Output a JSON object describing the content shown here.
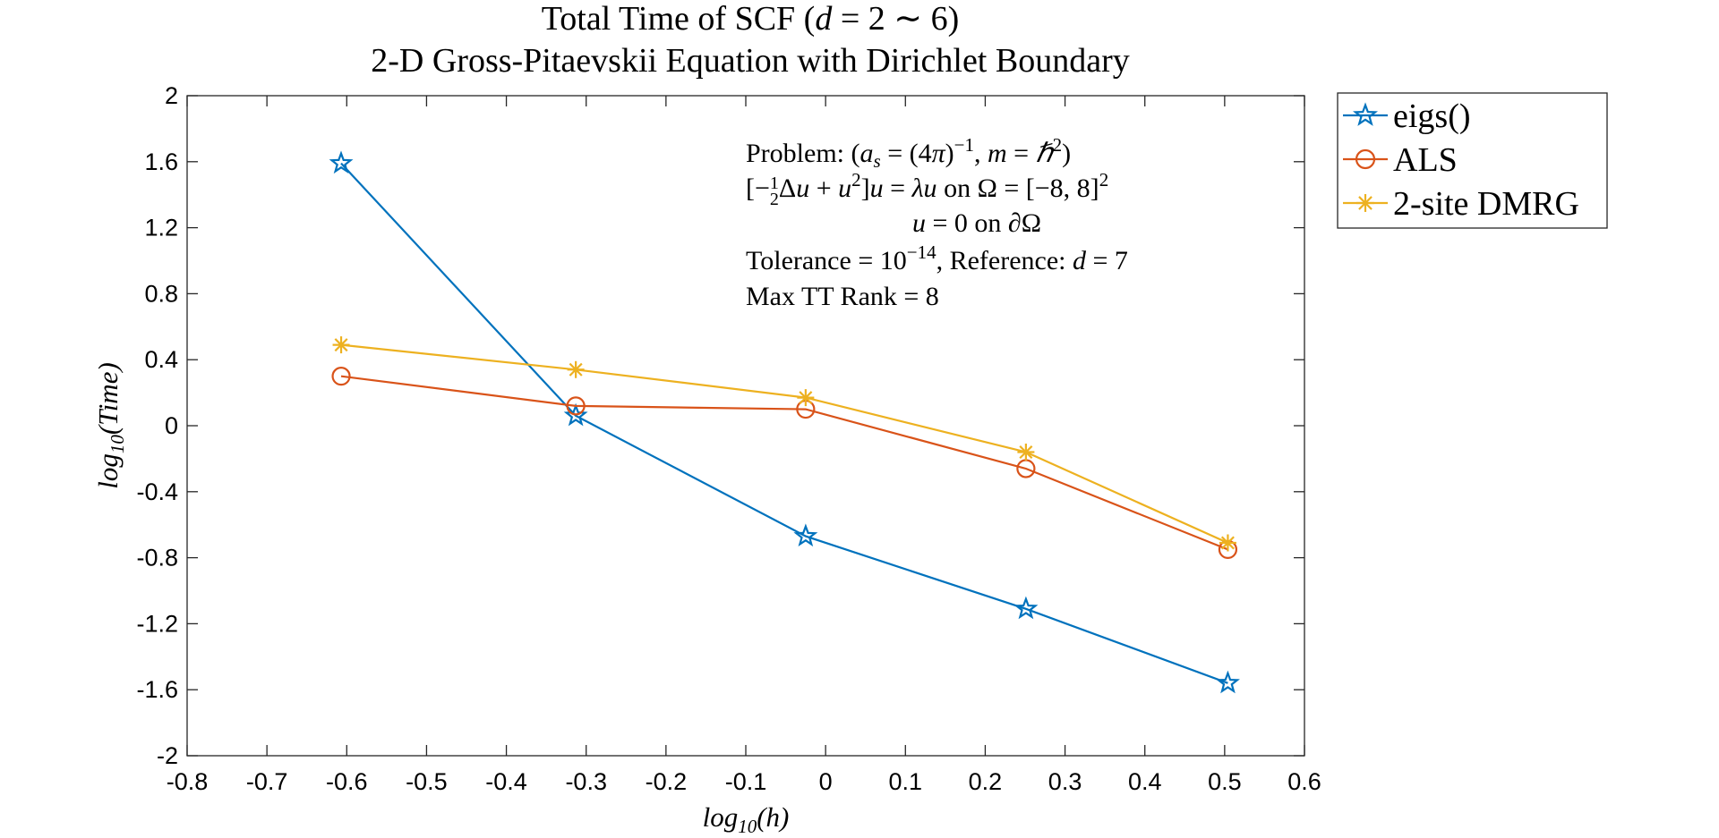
{
  "chart_data": {
    "type": "line",
    "title": "Total Time of SCF (d = 2 ∼ 6)",
    "subtitle": "2-D Gross-Pitaevskii Equation with Dirichlet Boundary",
    "xlabel": "log10(h)",
    "ylabel": "log10(Time)",
    "xlim": [
      -0.8,
      0.6
    ],
    "ylim": [
      -2,
      2
    ],
    "xticks": [
      "-0.8",
      "-0.7",
      "-0.6",
      "-0.5",
      "-0.4",
      "-0.3",
      "-0.2",
      "-0.1",
      "0",
      "0.1",
      "0.2",
      "0.3",
      "0.4",
      "0.5",
      "0.6"
    ],
    "yticks": [
      "2",
      "1.6",
      "1.2",
      "0.8",
      "0.4",
      "0",
      "-0.4",
      "-0.8",
      "-1.2",
      "-1.6",
      "-2"
    ],
    "x": [
      -0.607,
      -0.313,
      -0.025,
      0.251,
      0.504
    ],
    "series": [
      {
        "name": "eigs()",
        "marker": "star",
        "color": "#0072BD",
        "values": [
          1.59,
          0.06,
          -0.67,
          -1.11,
          -1.56
        ]
      },
      {
        "name": "ALS",
        "marker": "circle",
        "color": "#D95319",
        "values": [
          0.3,
          0.12,
          0.1,
          -0.26,
          -0.75
        ]
      },
      {
        "name": "2-site DMRG",
        "marker": "asterisk",
        "color": "#EDB120",
        "values": [
          0.49,
          0.34,
          0.17,
          -0.16,
          -0.71
        ]
      }
    ],
    "annotations": [
      "Problem: (as = (4π)−1, m = ℏ2)",
      "[−½Δu + u2]u = λu on Ω = [−8, 8]2",
      "u = 0 on ∂Ω",
      "Tolerance = 10−14, Reference: d = 7",
      "Max TT Rank = 8"
    ],
    "grid": false,
    "legend": "outside-top-right"
  }
}
